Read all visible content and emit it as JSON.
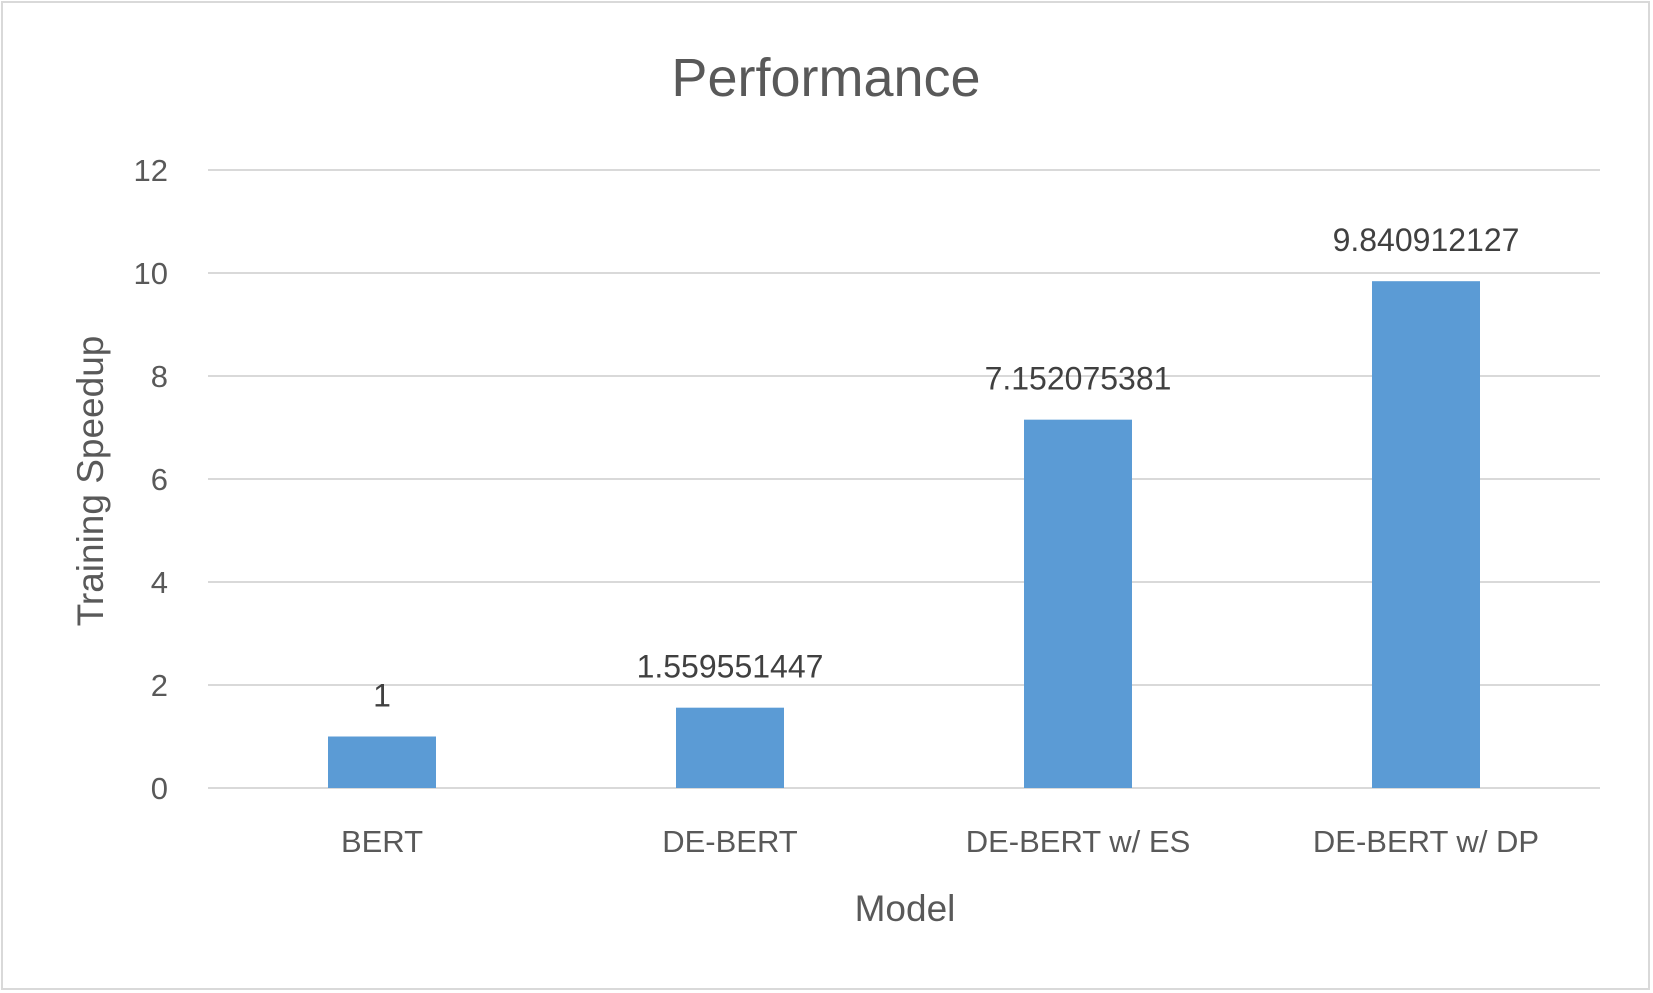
{
  "chart_data": {
    "type": "bar",
    "title": "Performance",
    "xlabel": "Model",
    "ylabel": "Training Speedup",
    "categories": [
      "BERT",
      "DE-BERT",
      "DE-BERT w/ ES",
      "DE-BERT w/ DP"
    ],
    "values": [
      1,
      1.559551447,
      7.152075381,
      9.840912127
    ],
    "data_labels": [
      "1",
      "1.559551447",
      "7.152075381",
      "9.840912127"
    ],
    "ylim": [
      0,
      12
    ],
    "yticks": [
      0,
      2,
      4,
      6,
      8,
      10,
      12
    ],
    "grid": true,
    "legend": "none",
    "colors": {
      "bar": "#5b9bd5",
      "grid": "#d9d9d9",
      "text": "#595959",
      "label": "#404040"
    }
  }
}
